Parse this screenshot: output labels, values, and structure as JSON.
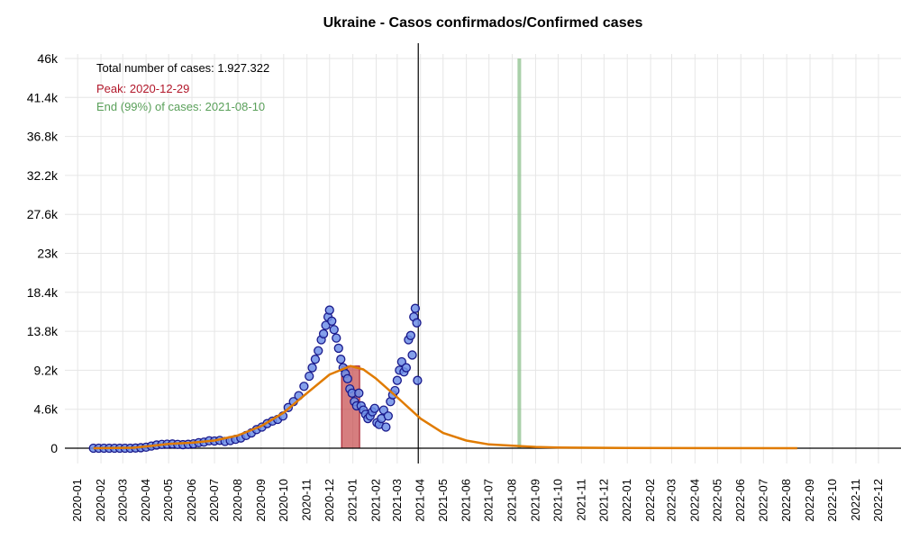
{
  "chart_data": {
    "type": "scatter",
    "title": "Ukraine - Casos confirmados/Confirmed cases",
    "xlabel": "",
    "ylabel": "",
    "ylim": [
      0,
      46000
    ],
    "xlim": [
      "2019-12-15",
      "2022-12-31"
    ],
    "y_ticks": [
      0,
      4600,
      9200,
      13800,
      18400,
      23000,
      27600,
      32200,
      36800,
      41400,
      46000
    ],
    "y_tick_labels": [
      "0",
      "4.6k",
      "9.2k",
      "13.8k",
      "18.4k",
      "23k",
      "27.6k",
      "32.2k",
      "36.8k",
      "41.4k",
      "46k"
    ],
    "x_tick_labels": [
      "2020-01",
      "2020-02",
      "2020-03",
      "2020-04",
      "2020-05",
      "2020-06",
      "2020-07",
      "2020-08",
      "2020-09",
      "2020-10",
      "2020-11",
      "2020-12",
      "2021-01",
      "2021-02",
      "2021-03",
      "2021-04",
      "2021-05",
      "2021-06",
      "2021-07",
      "2021-08",
      "2021-09",
      "2021-10",
      "2021-11",
      "2021-12",
      "2022-01",
      "2022-02",
      "2022-03",
      "2022-04",
      "2022-05",
      "2022-06",
      "2022-07",
      "2022-08",
      "2022-09",
      "2022-10",
      "2022-11",
      "2022-12"
    ],
    "grid": true,
    "annotations": {
      "total": "Total number of cases: 1.927.322",
      "peak": "Peak: 2020-12-29",
      "end": "End (99%) of cases: 2021-08-10"
    },
    "current_date_line": "2021-03-29",
    "peak_band": {
      "start": "2020-12-17",
      "end": "2021-01-10"
    },
    "end_band": {
      "start": "2021-08-08",
      "end": "2021-08-11"
    },
    "fit_curve": {
      "color": "#e07b00",
      "start": "2020-01-22",
      "end": "2022-08-15",
      "points": [
        [
          "2020-01-22",
          0
        ],
        [
          "2020-03-15",
          50
        ],
        [
          "2020-04-10",
          300
        ],
        [
          "2020-05-01",
          500
        ],
        [
          "2020-06-01",
          650
        ],
        [
          "2020-07-01",
          900
        ],
        [
          "2020-08-01",
          1500
        ],
        [
          "2020-09-01",
          2600
        ],
        [
          "2020-10-01",
          4200
        ],
        [
          "2020-11-01",
          6500
        ],
        [
          "2020-12-01",
          8700
        ],
        [
          "2020-12-29",
          9700
        ],
        [
          "2021-01-15",
          9300
        ],
        [
          "2021-02-01",
          8200
        ],
        [
          "2021-03-01",
          6000
        ],
        [
          "2021-04-01",
          3500
        ],
        [
          "2021-05-01",
          1800
        ],
        [
          "2021-06-01",
          900
        ],
        [
          "2021-07-01",
          450
        ],
        [
          "2021-08-10",
          250
        ],
        [
          "2021-09-01",
          150
        ],
        [
          "2021-10-01",
          80
        ],
        [
          "2022-01-01",
          20
        ],
        [
          "2022-08-15",
          0
        ]
      ]
    },
    "series": [
      {
        "marker_color": "#6f8fe8",
        "edge_color": "#1a1a8c",
        "points": [
          [
            "2020-01-22",
            0
          ],
          [
            "2020-01-29",
            0
          ],
          [
            "2020-02-05",
            0
          ],
          [
            "2020-02-12",
            0
          ],
          [
            "2020-02-19",
            0
          ],
          [
            "2020-02-26",
            0
          ],
          [
            "2020-03-04",
            0
          ],
          [
            "2020-03-11",
            0
          ],
          [
            "2020-03-18",
            20
          ],
          [
            "2020-03-25",
            60
          ],
          [
            "2020-04-01",
            120
          ],
          [
            "2020-04-08",
            250
          ],
          [
            "2020-04-15",
            380
          ],
          [
            "2020-04-22",
            450
          ],
          [
            "2020-04-29",
            480
          ],
          [
            "2020-05-06",
            500
          ],
          [
            "2020-05-13",
            450
          ],
          [
            "2020-05-20",
            420
          ],
          [
            "2020-05-27",
            460
          ],
          [
            "2020-06-03",
            520
          ],
          [
            "2020-06-10",
            650
          ],
          [
            "2020-06-17",
            720
          ],
          [
            "2020-06-24",
            880
          ],
          [
            "2020-07-01",
            850
          ],
          [
            "2020-07-08",
            920
          ],
          [
            "2020-07-15",
            800
          ],
          [
            "2020-07-22",
            900
          ],
          [
            "2020-07-29",
            1050
          ],
          [
            "2020-08-05",
            1200
          ],
          [
            "2020-08-12",
            1500
          ],
          [
            "2020-08-19",
            1800
          ],
          [
            "2020-08-26",
            2200
          ],
          [
            "2020-09-02",
            2500
          ],
          [
            "2020-09-09",
            2900
          ],
          [
            "2020-09-16",
            3200
          ],
          [
            "2020-09-23",
            3400
          ],
          [
            "2020-09-30",
            3800
          ],
          [
            "2020-10-07",
            4800
          ],
          [
            "2020-10-14",
            5500
          ],
          [
            "2020-10-21",
            6200
          ],
          [
            "2020-10-28",
            7300
          ],
          [
            "2020-11-04",
            8500
          ],
          [
            "2020-11-08",
            9500
          ],
          [
            "2020-11-12",
            10500
          ],
          [
            "2020-11-16",
            11500
          ],
          [
            "2020-11-20",
            12800
          ],
          [
            "2020-11-23",
            13500
          ],
          [
            "2020-11-26",
            14500
          ],
          [
            "2020-11-29",
            15500
          ],
          [
            "2020-12-01",
            16300
          ],
          [
            "2020-12-04",
            15000
          ],
          [
            "2020-12-07",
            14000
          ],
          [
            "2020-12-10",
            13000
          ],
          [
            "2020-12-13",
            11800
          ],
          [
            "2020-12-16",
            10500
          ],
          [
            "2020-12-19",
            9500
          ],
          [
            "2020-12-22",
            8800
          ],
          [
            "2020-12-25",
            8200
          ],
          [
            "2020-12-28",
            7000
          ],
          [
            "2020-12-31",
            6500
          ],
          [
            "2021-01-03",
            5500
          ],
          [
            "2021-01-06",
            5000
          ],
          [
            "2021-01-09",
            6500
          ],
          [
            "2021-01-12",
            5000
          ],
          [
            "2021-01-15",
            4500
          ],
          [
            "2021-01-18",
            4000
          ],
          [
            "2021-01-21",
            3500
          ],
          [
            "2021-01-24",
            3800
          ],
          [
            "2021-01-27",
            4300
          ],
          [
            "2021-01-30",
            4700
          ],
          [
            "2021-02-02",
            3000
          ],
          [
            "2021-02-05",
            2800
          ],
          [
            "2021-02-08",
            3500
          ],
          [
            "2021-02-11",
            4500
          ],
          [
            "2021-02-14",
            2500
          ],
          [
            "2021-02-17",
            3800
          ],
          [
            "2021-02-20",
            5500
          ],
          [
            "2021-02-23",
            6300
          ],
          [
            "2021-02-26",
            6800
          ],
          [
            "2021-03-01",
            8000
          ],
          [
            "2021-03-04",
            9200
          ],
          [
            "2021-03-07",
            10200
          ],
          [
            "2021-03-10",
            9000
          ],
          [
            "2021-03-13",
            9500
          ],
          [
            "2021-03-16",
            12800
          ],
          [
            "2021-03-19",
            13300
          ],
          [
            "2021-03-21",
            11000
          ],
          [
            "2021-03-23",
            15500
          ],
          [
            "2021-03-25",
            16500
          ],
          [
            "2021-03-27",
            14800
          ],
          [
            "2021-03-28",
            8000
          ]
        ]
      }
    ]
  }
}
